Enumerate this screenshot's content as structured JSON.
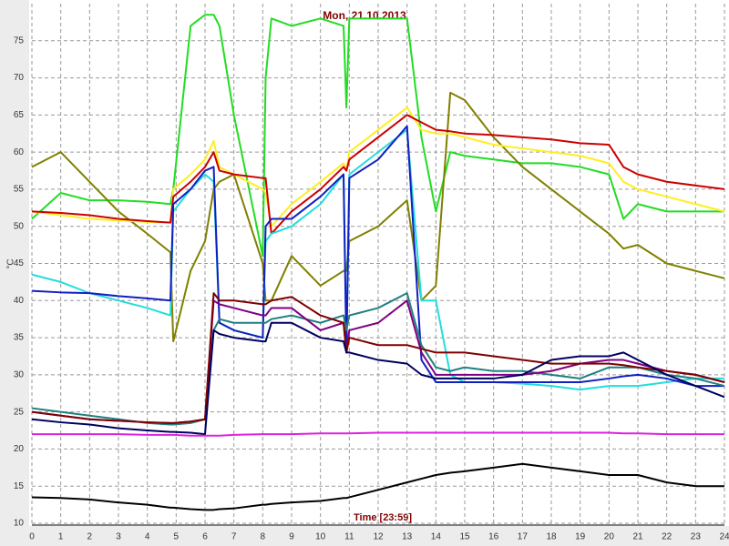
{
  "chart_data": {
    "type": "line",
    "title": "Mon, 21.10.2013",
    "y_label": "°C",
    "x_label": "Time [23:59]",
    "xlim": [
      0,
      24
    ],
    "ylim": [
      10,
      80
    ],
    "xticks": [
      0,
      1,
      2,
      3,
      4,
      5,
      6,
      7,
      8,
      9,
      10,
      11,
      12,
      13,
      14,
      15,
      16,
      17,
      18,
      19,
      20,
      21,
      22,
      23,
      24
    ],
    "yticks": [
      10,
      15,
      20,
      25,
      30,
      35,
      40,
      45,
      50,
      55,
      60,
      65,
      70,
      75
    ],
    "grid": true,
    "x": [
      0,
      1,
      2,
      3,
      4,
      4.8,
      4.9,
      5.5,
      6,
      6.3,
      6.5,
      7,
      8,
      8.1,
      8.3,
      9,
      10,
      10.8,
      10.9,
      11,
      12,
      13,
      13.5,
      14,
      14.5,
      15,
      16,
      17,
      18,
      19,
      20,
      20.5,
      21,
      22,
      23,
      24
    ],
    "series": [
      {
        "color": "#22dd22",
        "values": [
          51,
          54.5,
          53.5,
          53.5,
          53.3,
          53,
          55,
          77,
          78.5,
          78.5,
          77,
          65,
          46,
          70,
          78,
          77,
          78,
          77,
          66,
          78,
          78,
          78,
          62,
          52,
          60,
          59.5,
          59,
          58.5,
          58.5,
          58,
          57,
          51,
          53,
          52,
          52,
          52
        ]
      },
      {
        "color": "#808000",
        "values": [
          58,
          60,
          56,
          52,
          49,
          46.5,
          34.5,
          44,
          48,
          55,
          56,
          57,
          45,
          40,
          40,
          46,
          42,
          44,
          44,
          48,
          50,
          53.5,
          40,
          42,
          68,
          67,
          62,
          58,
          55,
          52,
          49,
          47,
          47.5,
          45,
          44,
          43
        ]
      },
      {
        "color": "#ffee22",
        "values": [
          52,
          51.5,
          51,
          50.8,
          50.6,
          50.5,
          55,
          57,
          59,
          61.5,
          58,
          57,
          55,
          54.5,
          50,
          53,
          56,
          58.5,
          57.5,
          60,
          63,
          66,
          63,
          62.5,
          62.5,
          62,
          61,
          60.5,
          60,
          59.5,
          58.5,
          56,
          55,
          54,
          53,
          52
        ]
      },
      {
        "color": "#cc0000",
        "values": [
          52,
          51.8,
          51.5,
          51,
          50.7,
          50.5,
          54,
          56,
          58,
          60,
          57.5,
          57,
          56.5,
          56.5,
          49,
          52,
          55,
          58,
          57.5,
          59,
          62,
          65,
          64,
          63,
          62.8,
          62.5,
          62.3,
          62,
          61.7,
          61.2,
          61,
          58,
          57,
          56,
          55.5,
          55
        ]
      },
      {
        "color": "#22dddd",
        "values": [
          43.5,
          42.5,
          41,
          40,
          39,
          38,
          52,
          55,
          57,
          56,
          37,
          36,
          35,
          48,
          49,
          50,
          53,
          57,
          34,
          57,
          60,
          63,
          40,
          40,
          30,
          29,
          29,
          28.8,
          28.5,
          28,
          28.5,
          28.5,
          28.5,
          29,
          29.5,
          29.5
        ]
      },
      {
        "color": "#1020c0",
        "values": [
          41.3,
          41.1,
          41,
          40.6,
          40.3,
          40,
          53,
          55,
          57.5,
          58,
          37,
          36,
          35,
          50,
          51,
          51,
          54,
          57,
          33,
          56.5,
          59,
          63.5,
          32,
          29,
          29,
          29,
          29,
          29,
          29,
          29,
          29.5,
          29.8,
          30,
          29.5,
          28.5,
          28.5
        ]
      },
      {
        "color": "#208080",
        "values": [
          25.5,
          25,
          24.5,
          24,
          23.5,
          23.3,
          23.3,
          23.5,
          24,
          36,
          37.5,
          37,
          37,
          37,
          37.5,
          38,
          37,
          38,
          36,
          38,
          39,
          41,
          34,
          31,
          30.5,
          31,
          30.5,
          30.5,
          30,
          29.5,
          31,
          31,
          31,
          30,
          29.5,
          28.5
        ]
      },
      {
        "color": "#800080",
        "values": [
          25,
          24.5,
          24,
          23.8,
          23.6,
          23.5,
          23.5,
          23.7,
          24,
          40,
          39.5,
          39,
          38,
          38,
          39,
          39,
          36,
          37,
          33,
          36,
          37,
          40,
          33,
          30,
          30,
          30,
          30,
          30,
          30.5,
          31.5,
          32,
          32,
          31.5,
          30.5,
          30,
          29
        ]
      },
      {
        "color": "#800000",
        "values": [
          25,
          24.5,
          24,
          23.8,
          23.6,
          23.5,
          23.5,
          23.7,
          24,
          41,
          40,
          40,
          39.5,
          39.5,
          40,
          40.5,
          38,
          37,
          33,
          35,
          34,
          34,
          33.5,
          33,
          33,
          33,
          32.5,
          32,
          31.5,
          31.5,
          31.5,
          31.3,
          31,
          30.5,
          30,
          29
        ]
      },
      {
        "color": "#000060",
        "values": [
          24,
          23.6,
          23.3,
          22.8,
          22.5,
          22.3,
          22.3,
          22.2,
          22,
          36,
          35.5,
          35,
          34.5,
          34.5,
          37,
          37,
          35,
          34.5,
          33,
          33,
          32,
          31.5,
          30,
          29.5,
          29.5,
          29.5,
          29.5,
          30,
          32,
          32.5,
          32.5,
          33,
          32,
          30,
          28.5,
          27
        ]
      },
      {
        "color": "#dd22dd",
        "values": [
          22,
          22,
          22,
          22,
          21.9,
          21.9,
          21.9,
          21.8,
          21.8,
          21.8,
          21.8,
          21.9,
          22,
          22,
          22,
          22,
          22.1,
          22.1,
          22.1,
          22.1,
          22.2,
          22.2,
          22.2,
          22.2,
          22.2,
          22.2,
          22.2,
          22.2,
          22.2,
          22.2,
          22.2,
          22.1,
          22.1,
          22,
          22,
          22
        ]
      },
      {
        "color": "#000000",
        "values": [
          13.5,
          13.4,
          13.2,
          12.8,
          12.5,
          12.1,
          12.1,
          11.9,
          11.8,
          11.8,
          11.9,
          12,
          12.5,
          12.5,
          12.6,
          12.8,
          13,
          13.4,
          13.4,
          13.5,
          14.5,
          15.5,
          16,
          16.5,
          16.8,
          17,
          17.5,
          18,
          17.5,
          17,
          16.5,
          16.5,
          16.5,
          15.5,
          15,
          15
        ]
      }
    ]
  }
}
